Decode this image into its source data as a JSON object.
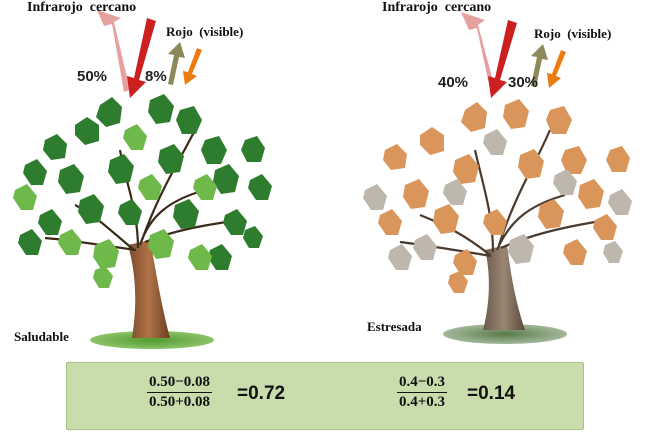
{
  "healthy": {
    "nir_label": "Infrarojo  cercano",
    "red_label": "Rojo  (visible)",
    "nir_pct": "50%",
    "red_pct": "8%",
    "status": "Saludable",
    "formula": {
      "numerator": "0.50−0.08",
      "denominator": "0.50+0.08",
      "result": "=0.72"
    }
  },
  "stressed": {
    "nir_label": "Infrarojo  cercano",
    "red_label": "Rojo  (visible)",
    "nir_pct": "40%",
    "red_pct": "30%",
    "status": "Estresada",
    "formula": {
      "numerator": "0.4−0.3",
      "denominator": "0.4+0.3",
      "result": "=0.14"
    }
  },
  "colors": {
    "incoming_arrow": "#cc1f1f",
    "nir_reflected_arrow": "#e7a0a0",
    "red_reflected_arrow": "#8c8a5a",
    "red_incoming_arrow": "#ee7a12",
    "healthy_leaf": "#2e7d2e",
    "stressed_leaf": "#d9955a",
    "formula_box": "#c9dcab"
  }
}
